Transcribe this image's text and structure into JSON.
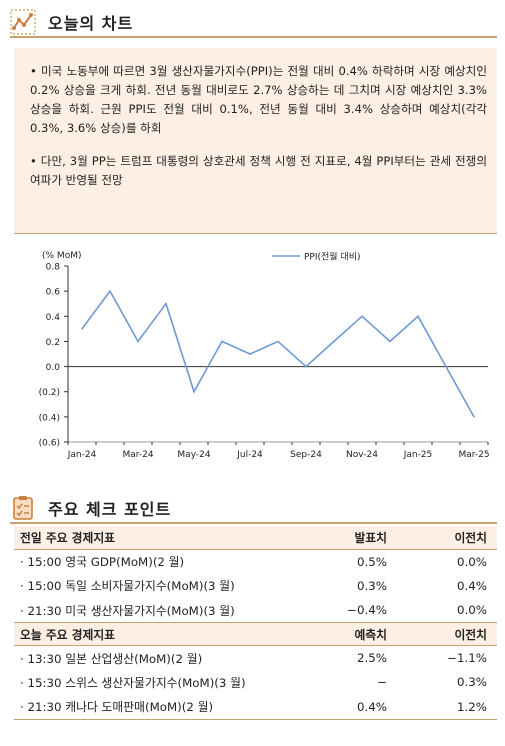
{
  "section1": {
    "title": "오늘의 차트",
    "bullets": [
      "• 미국 노동부에 따르면 3월 생산자물가지수(PPI)는 전월 대비 0.4% 하락하며 시장 예상치인 0.2% 상승을 크게 하회. 전년 동월 대비로도 2.7% 상승하는 데 그치며 시장 예상치인 3.3% 상승을 하회. 근원 PPI도 전월 대비 0.1%, 전년 동월 대비 3.4% 상승하며 예상치(각각 0.3%, 3.6% 상승)를 하회",
      "• 다만, 3월 PP는 트럼프 대통령의 상호관세 정책 시행 전 지표로, 4월 PPI부터는 관세 전쟁의 여파가 반영될 전망"
    ]
  },
  "chart_data": {
    "type": "line",
    "ylabel": "(% MoM)",
    "ylim": [
      -0.6,
      0.8
    ],
    "yticks": [
      "0.8",
      "0.6",
      "0.4",
      "0.2",
      "0.0",
      "(0.2)",
      "(0.4)",
      "(0.6)"
    ],
    "ytick_values": [
      0.8,
      0.6,
      0.4,
      0.2,
      0.0,
      -0.2,
      -0.4,
      -0.6
    ],
    "x": [
      "Jan-24",
      "Feb-24",
      "Mar-24",
      "Apr-24",
      "May-24",
      "Jun-24",
      "Jul-24",
      "Aug-24",
      "Sep-24",
      "Oct-24",
      "Nov-24",
      "Dec-24",
      "Jan-25",
      "Feb-25",
      "Mar-25"
    ],
    "xtick_labels": [
      "Jan-24",
      "Mar-24",
      "May-24",
      "Jul-24",
      "Sep-24",
      "Nov-24",
      "Jan-25",
      "Mar-25"
    ],
    "series": [
      {
        "name": "PPI(전월 대비)",
        "color": "#6d9ad2",
        "values": [
          0.3,
          0.6,
          0.2,
          0.5,
          -0.2,
          0.2,
          0.1,
          0.2,
          0.0,
          0.2,
          0.4,
          0.2,
          0.4,
          0.0,
          -0.4
        ]
      }
    ],
    "legend": "top-center",
    "grid": false
  },
  "section2": {
    "title": "주요 체크 포인트",
    "table1": {
      "headers": [
        "전일 주요 경제지표",
        "발표치",
        "이전치"
      ],
      "rows": [
        [
          "· 15:00  영국 GDP(MoM)(2 월)",
          "0.5%",
          "0.0%"
        ],
        [
          "· 15:00  독일 소비자물가지수(MoM)(3 월)",
          "0.3%",
          "0.4%"
        ],
        [
          "· 21:30  미국 생산자물가지수(MoM)(3 월)",
          "−0.4%",
          "0.0%"
        ]
      ]
    },
    "table2": {
      "headers": [
        "오늘 주요 경제지표",
        "예측치",
        "이전치"
      ],
      "rows": [
        [
          "· 13:30  일본 산업생산(MoM)(2 월)",
          "2.5%",
          "−1.1%"
        ],
        [
          "· 15:30  스위스 생산자물가지수(MoM)(3 월)",
          "−",
          "0.3%"
        ],
        [
          "· 21:30  캐나다 도매판매(MoM)(2 월)",
          "0.4%",
          "1.2%"
        ]
      ]
    }
  },
  "colors": {
    "accent": "#c9a070",
    "panel": "#fdefe4",
    "line": "#6d9ad2"
  }
}
